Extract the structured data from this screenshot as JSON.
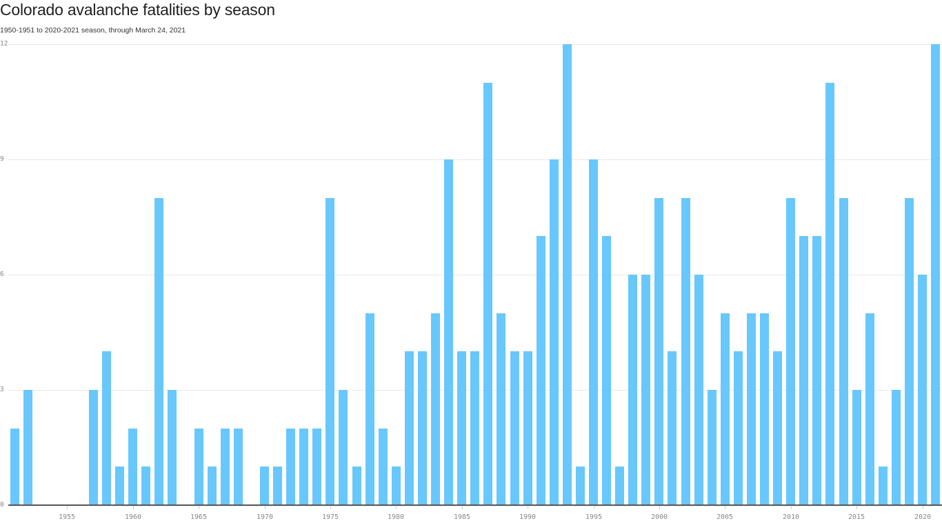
{
  "header": {
    "title": "Colorado avalanche fatalities by season",
    "subtitle": "1950-1951 to 2020-2021 season, through March 24, 2021"
  },
  "colors": {
    "bar": "#68c7fd",
    "grid": "#e8e8e8",
    "axis": "#555555"
  },
  "chart_data": {
    "type": "bar",
    "title": "Colorado avalanche fatalities by season",
    "subtitle": "1950-1951 to 2020-2021 season, through March 24, 2021",
    "xlabel": "",
    "ylabel": "",
    "ylim": [
      0,
      12
    ],
    "yticks": [
      0,
      3,
      6,
      9,
      12
    ],
    "xticks": [
      1955,
      1960,
      1965,
      1970,
      1975,
      1980,
      1985,
      1990,
      1995,
      2000,
      2005,
      2010,
      2015,
      2020
    ],
    "grid": true,
    "legend": null,
    "categories": [
      1951,
      1952,
      1953,
      1954,
      1955,
      1956,
      1957,
      1958,
      1959,
      1960,
      1961,
      1962,
      1963,
      1964,
      1965,
      1966,
      1967,
      1968,
      1969,
      1970,
      1971,
      1972,
      1973,
      1974,
      1975,
      1976,
      1977,
      1978,
      1979,
      1980,
      1981,
      1982,
      1983,
      1984,
      1985,
      1986,
      1987,
      1988,
      1989,
      1990,
      1991,
      1992,
      1993,
      1994,
      1995,
      1996,
      1997,
      1998,
      1999,
      2000,
      2001,
      2002,
      2003,
      2004,
      2005,
      2006,
      2007,
      2008,
      2009,
      2010,
      2011,
      2012,
      2013,
      2014,
      2015,
      2016,
      2017,
      2018,
      2019,
      2020,
      2021
    ],
    "values": [
      2,
      3,
      0,
      0,
      0,
      0,
      3,
      4,
      1,
      2,
      1,
      8,
      3,
      0,
      2,
      1,
      2,
      2,
      0,
      1,
      1,
      2,
      2,
      2,
      8,
      3,
      1,
      5,
      2,
      1,
      4,
      4,
      5,
      9,
      4,
      4,
      11,
      5,
      4,
      4,
      7,
      9,
      12,
      1,
      9,
      7,
      1,
      6,
      6,
      8,
      4,
      8,
      6,
      3,
      5,
      4,
      5,
      5,
      4,
      8,
      7,
      7,
      11,
      8,
      3,
      5,
      1,
      3,
      8,
      6,
      12
    ]
  }
}
